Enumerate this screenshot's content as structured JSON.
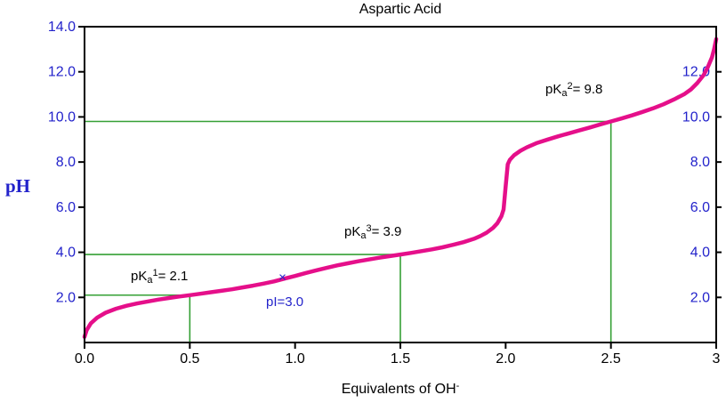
{
  "title": "Aspartic Acid",
  "colors": {
    "curve": "#e50f8a",
    "guide": "#35a035",
    "axis_number_blue": "#2323cb",
    "axis_black": "#000000",
    "marker": "#2323cb"
  },
  "axis": {
    "ph_label": "pH",
    "xlabel_prefix": "Equivalents of OH",
    "xlabel_sup": "-"
  },
  "annotations": {
    "pka1": {
      "prefix": "pK",
      "sub": "a",
      "sup": "1",
      "rest": "= 2.1"
    },
    "pka3": {
      "prefix": "pK",
      "sub": "a",
      "sup": "3",
      "rest": "= 3.9"
    },
    "pka2": {
      "prefix": "pK",
      "sub": "a",
      "sup": "2",
      "rest": "= 9.8"
    },
    "pi_label": "pI=3.0"
  },
  "chart_data": {
    "type": "line",
    "title": "Aspartic Acid",
    "xlabel": "Equivalents of OH-",
    "ylabel": "pH",
    "xlim": [
      0,
      3
    ],
    "ylim": [
      0,
      14
    ],
    "grid": false,
    "x_ticks": [
      {
        "v": 0.0,
        "label": "0.0"
      },
      {
        "v": 0.5,
        "label": "0.5"
      },
      {
        "v": 1.0,
        "label": "1.0"
      },
      {
        "v": 1.5,
        "label": "1.5"
      },
      {
        "v": 2.0,
        "label": "2.0"
      },
      {
        "v": 2.5,
        "label": "2.5"
      },
      {
        "v": 3.0,
        "label": "3"
      }
    ],
    "y_ticks_left": [
      {
        "v": 14,
        "label": "14.0"
      },
      {
        "v": 12,
        "label": "12.0"
      },
      {
        "v": 10,
        "label": "10.0"
      },
      {
        "v": 8,
        "label": "8.0"
      },
      {
        "v": 6,
        "label": "6.0"
      },
      {
        "v": 4,
        "label": "4.0"
      },
      {
        "v": 2,
        "label": "2.0"
      }
    ],
    "y_ticks_right": [
      {
        "v": 12,
        "label": "12.0"
      },
      {
        "v": 10,
        "label": "10.0"
      },
      {
        "v": 8,
        "label": "8.0"
      },
      {
        "v": 6,
        "label": "6.0"
      },
      {
        "v": 4,
        "label": "4.0"
      },
      {
        "v": 2,
        "label": "2.0"
      }
    ],
    "pka_guides": [
      {
        "name": "pKa1",
        "ph": 2.1,
        "equivalents": 0.5
      },
      {
        "name": "pKa3",
        "ph": 3.9,
        "equivalents": 1.5
      },
      {
        "name": "pKa2",
        "ph": 9.8,
        "equivalents": 2.5
      }
    ],
    "pI": {
      "value": 3.0,
      "marker_x": 0.94,
      "marker_ph": 2.9,
      "marker_symbol": "×"
    },
    "curve": [
      [
        0.0,
        0.25
      ],
      [
        0.01,
        0.55
      ],
      [
        0.03,
        0.85
      ],
      [
        0.06,
        1.1
      ],
      [
        0.1,
        1.32
      ],
      [
        0.15,
        1.5
      ],
      [
        0.2,
        1.63
      ],
      [
        0.25,
        1.73
      ],
      [
        0.3,
        1.82
      ],
      [
        0.35,
        1.9
      ],
      [
        0.4,
        1.97
      ],
      [
        0.45,
        2.04
      ],
      [
        0.5,
        2.1
      ],
      [
        0.55,
        2.16
      ],
      [
        0.6,
        2.23
      ],
      [
        0.65,
        2.29
      ],
      [
        0.7,
        2.36
      ],
      [
        0.75,
        2.44
      ],
      [
        0.8,
        2.52
      ],
      [
        0.85,
        2.61
      ],
      [
        0.9,
        2.71
      ],
      [
        0.95,
        2.83
      ],
      [
        1.0,
        2.95
      ],
      [
        1.05,
        3.08
      ],
      [
        1.1,
        3.2
      ],
      [
        1.15,
        3.31
      ],
      [
        1.2,
        3.42
      ],
      [
        1.25,
        3.51
      ],
      [
        1.3,
        3.6
      ],
      [
        1.35,
        3.68
      ],
      [
        1.4,
        3.76
      ],
      [
        1.45,
        3.83
      ],
      [
        1.5,
        3.9
      ],
      [
        1.55,
        3.97
      ],
      [
        1.6,
        4.05
      ],
      [
        1.65,
        4.13
      ],
      [
        1.7,
        4.22
      ],
      [
        1.75,
        4.33
      ],
      [
        1.8,
        4.45
      ],
      [
        1.85,
        4.6
      ],
      [
        1.88,
        4.72
      ],
      [
        1.91,
        4.87
      ],
      [
        1.94,
        5.08
      ],
      [
        1.96,
        5.28
      ],
      [
        1.98,
        5.6
      ],
      [
        1.99,
        5.9
      ],
      [
        2.0,
        6.9
      ],
      [
        2.01,
        7.9
      ],
      [
        2.02,
        8.1
      ],
      [
        2.04,
        8.3
      ],
      [
        2.07,
        8.5
      ],
      [
        2.1,
        8.65
      ],
      [
        2.15,
        8.85
      ],
      [
        2.2,
        9.0
      ],
      [
        2.25,
        9.14
      ],
      [
        2.3,
        9.27
      ],
      [
        2.35,
        9.4
      ],
      [
        2.4,
        9.53
      ],
      [
        2.45,
        9.67
      ],
      [
        2.5,
        9.8
      ],
      [
        2.55,
        9.93
      ],
      [
        2.6,
        10.07
      ],
      [
        2.65,
        10.22
      ],
      [
        2.7,
        10.38
      ],
      [
        2.75,
        10.56
      ],
      [
        2.8,
        10.78
      ],
      [
        2.85,
        11.02
      ],
      [
        2.88,
        11.22
      ],
      [
        2.91,
        11.5
      ],
      [
        2.94,
        11.85
      ],
      [
        2.96,
        12.2
      ],
      [
        2.98,
        12.65
      ],
      [
        2.99,
        13.0
      ],
      [
        3.0,
        13.45
      ]
    ]
  }
}
